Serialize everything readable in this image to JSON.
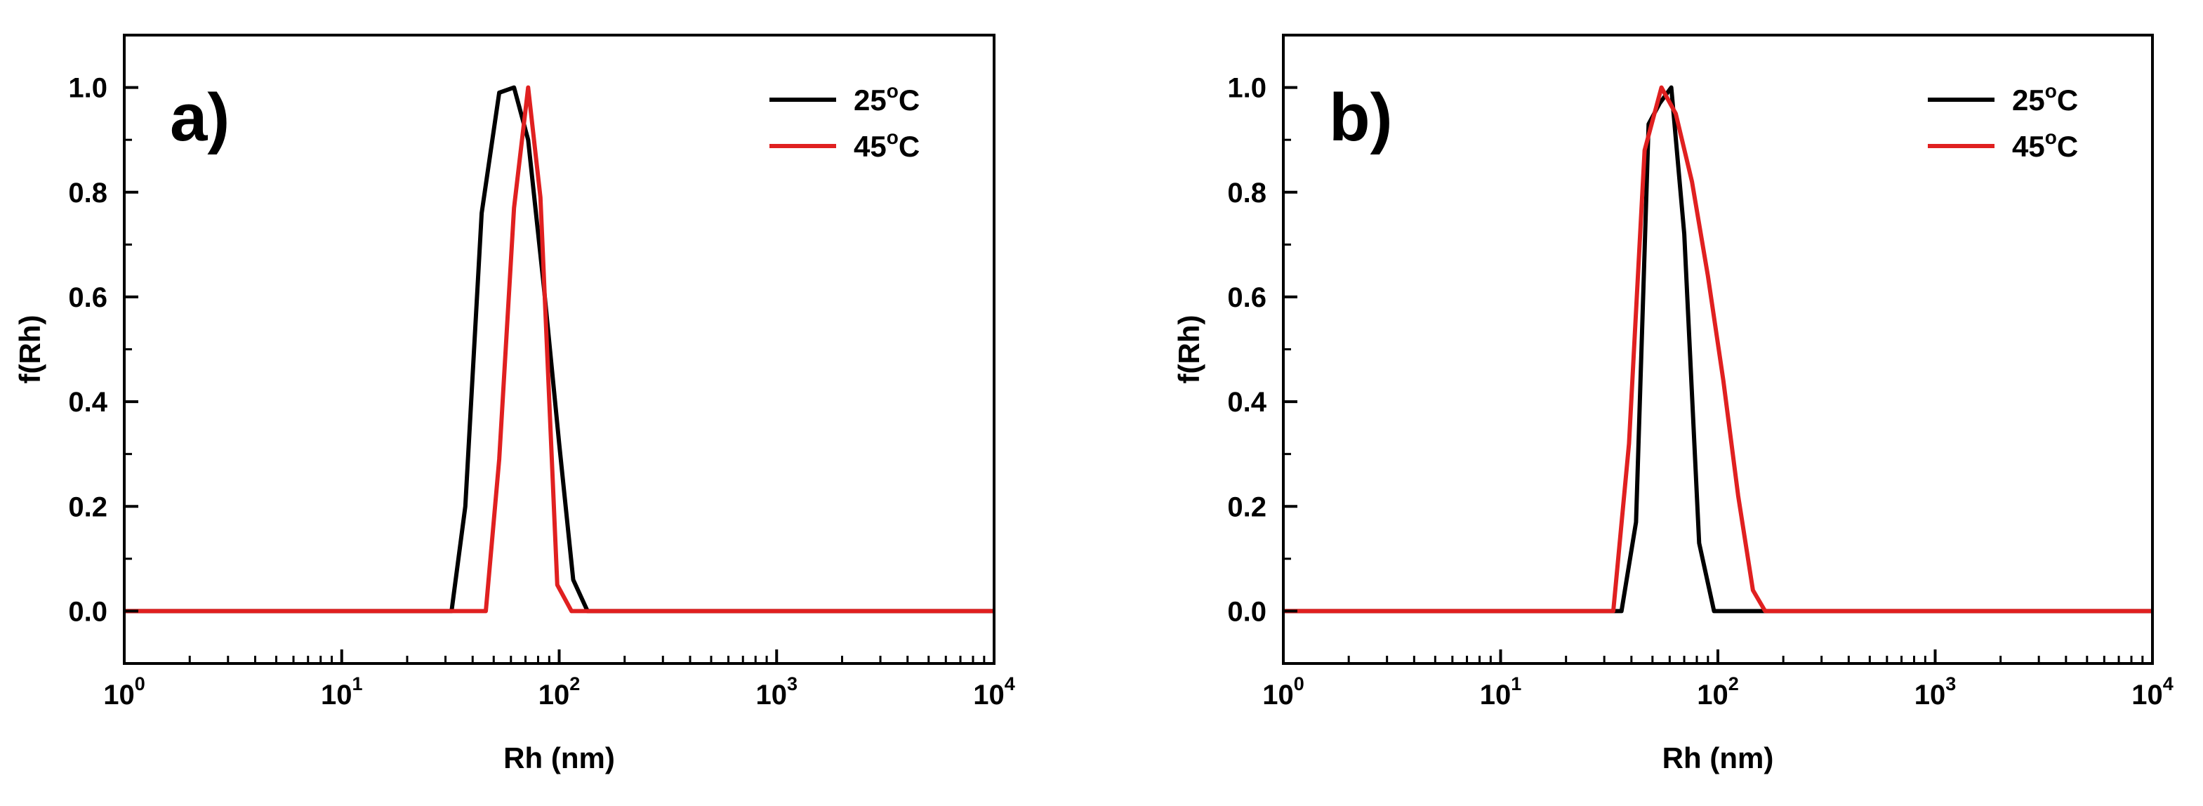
{
  "chart_data": [
    {
      "type": "line",
      "panel_label": "a)",
      "xlabel": "Rh (nm)",
      "ylabel": "f(Rh)",
      "xscale": "log",
      "xlim": [
        1,
        10000
      ],
      "ylim": [
        -0.1,
        1.1
      ],
      "xticks": [
        {
          "base": "10",
          "exp": "0",
          "value": 1
        },
        {
          "base": "10",
          "exp": "1",
          "value": 10
        },
        {
          "base": "10",
          "exp": "2",
          "value": 100
        },
        {
          "base": "10",
          "exp": "3",
          "value": 1000
        },
        {
          "base": "10",
          "exp": "4",
          "value": 10000
        }
      ],
      "yticks": [
        "0.0",
        "0.2",
        "0.4",
        "0.6",
        "0.8",
        "1.0"
      ],
      "legend_position": "top-right",
      "series": [
        {
          "name": "25°C",
          "label_main": "25",
          "label_deg": "o",
          "label_unit": "C",
          "color": "#000000",
          "x": [
            1,
            32,
            37,
            44,
            53,
            62,
            72,
            85,
            100,
            116,
            135,
            10000
          ],
          "y": [
            0,
            0,
            0.2,
            0.76,
            0.99,
            1.0,
            0.9,
            0.62,
            0.32,
            0.06,
            0,
            0
          ]
        },
        {
          "name": "45°C",
          "label_main": "45",
          "label_deg": "o",
          "label_unit": "C",
          "color": "#e02020",
          "x": [
            1,
            46,
            53,
            62,
            72,
            82,
            98,
            114,
            10000
          ],
          "y": [
            0,
            0,
            0.29,
            0.77,
            1.0,
            0.79,
            0.05,
            0,
            0
          ]
        }
      ]
    },
    {
      "type": "line",
      "panel_label": "b)",
      "xlabel": "Rh (nm)",
      "ylabel": "f(Rh)",
      "xscale": "log",
      "xlim": [
        1,
        10000
      ],
      "ylim": [
        -0.1,
        1.1
      ],
      "xticks": [
        {
          "base": "10",
          "exp": "0",
          "value": 1
        },
        {
          "base": "10",
          "exp": "1",
          "value": 10
        },
        {
          "base": "10",
          "exp": "2",
          "value": 100
        },
        {
          "base": "10",
          "exp": "3",
          "value": 1000
        },
        {
          "base": "10",
          "exp": "4",
          "value": 10000
        }
      ],
      "yticks": [
        "0.0",
        "0.2",
        "0.4",
        "0.6",
        "0.8",
        "1.0"
      ],
      "legend_position": "top-right",
      "series": [
        {
          "name": "25°C",
          "label_main": "25",
          "label_deg": "o",
          "label_unit": "C",
          "color": "#000000",
          "x": [
            1,
            36,
            42,
            48,
            54,
            61,
            70,
            82,
            96,
            110,
            10000
          ],
          "y": [
            0,
            0,
            0.17,
            0.93,
            0.97,
            1.0,
            0.72,
            0.13,
            0,
            0,
            0
          ]
        },
        {
          "name": "45°C",
          "label_main": "45",
          "label_deg": "o",
          "label_unit": "C",
          "color": "#e02020",
          "x": [
            1,
            33,
            39,
            46,
            55,
            64,
            76,
            90,
            106,
            124,
            145,
            165,
            10000
          ],
          "y": [
            0,
            0,
            0.32,
            0.88,
            1.0,
            0.95,
            0.82,
            0.64,
            0.44,
            0.22,
            0.04,
            0,
            0
          ]
        }
      ]
    }
  ]
}
